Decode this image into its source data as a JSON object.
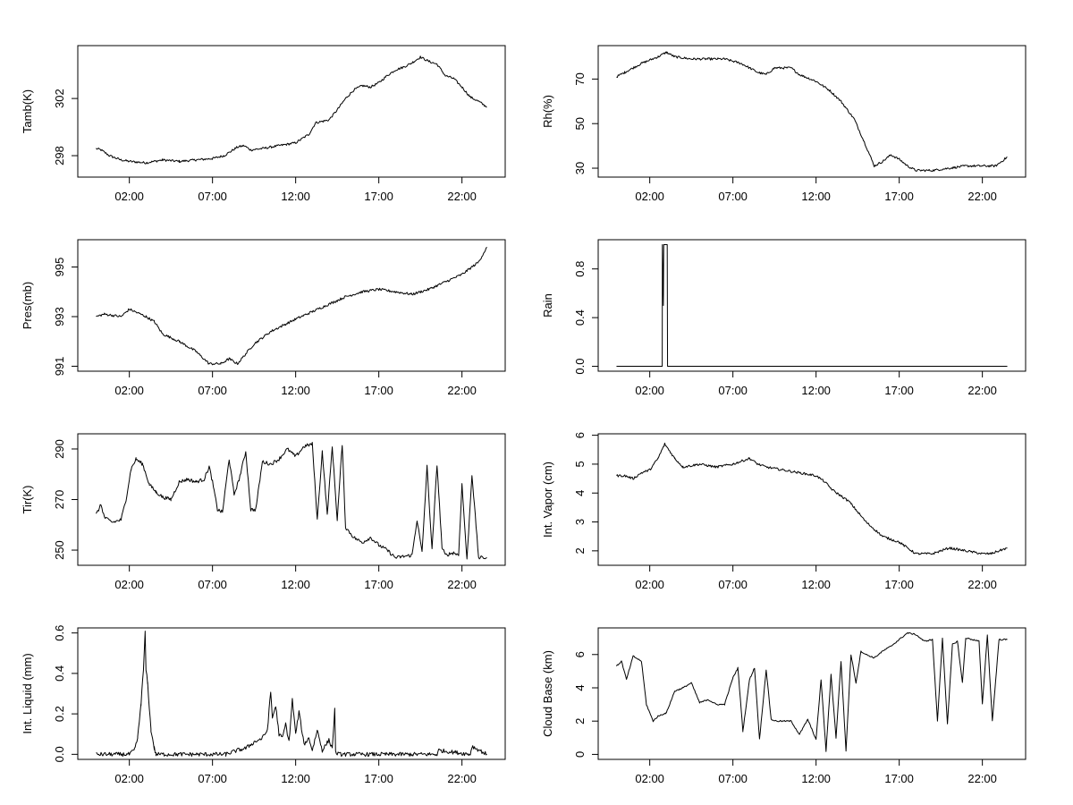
{
  "chart_data": [
    {
      "id": "tamb",
      "type": "line",
      "ylabel": "Tamb(K)",
      "xlabel": "",
      "x_unit": "hour",
      "xlim": [
        -1.1,
        24.6
      ],
      "xticks": [
        2,
        7,
        12,
        17,
        22
      ],
      "xticklabels": [
        "02:00",
        "07:00",
        "12:00",
        "17:00",
        "22:00"
      ],
      "ylim": [
        296.5,
        305.7
      ],
      "yticks": [
        298,
        302
      ],
      "yticklabels": [
        "298",
        "302"
      ],
      "series": [
        {
          "name": "Tamb",
          "x": [
            0,
            0.3,
            0.8,
            1.5,
            2.0,
            3.0,
            4.0,
            5.0,
            6.0,
            7.0,
            7.7,
            8.5,
            8.9,
            9.3,
            10.0,
            11.0,
            12.0,
            12.8,
            13.2,
            14.0,
            14.5,
            15.0,
            15.5,
            16.0,
            16.5,
            17.0,
            17.5,
            18.0,
            18.5,
            19.0,
            19.5,
            20.0,
            20.5,
            21.0,
            21.5,
            22.0,
            22.5,
            23.0,
            23.5
          ],
          "y": [
            298.5,
            298.4,
            298.0,
            297.7,
            297.6,
            297.5,
            297.7,
            297.6,
            297.7,
            297.8,
            298.0,
            298.6,
            298.7,
            298.4,
            298.5,
            298.7,
            298.9,
            299.5,
            300.3,
            300.5,
            301.2,
            302.0,
            302.6,
            302.9,
            302.8,
            303.1,
            303.6,
            304.0,
            304.2,
            304.5,
            304.9,
            304.6,
            304.4,
            303.6,
            303.4,
            302.8,
            302.1,
            301.8,
            301.4
          ],
          "noise": 0.08
        }
      ]
    },
    {
      "id": "rh",
      "type": "line",
      "ylabel": "Rh(%)",
      "xlabel": "",
      "x_unit": "hour",
      "xlim": [
        -1.1,
        24.6
      ],
      "xticks": [
        2,
        7,
        12,
        17,
        22
      ],
      "xticklabels": [
        "02:00",
        "07:00",
        "12:00",
        "17:00",
        "22:00"
      ],
      "ylim": [
        26,
        85
      ],
      "yticks": [
        30,
        50,
        70
      ],
      "yticklabels": [
        "30",
        "50",
        "70"
      ],
      "series": [
        {
          "name": "Rh",
          "x": [
            0,
            0.5,
            1.5,
            2.5,
            3.0,
            3.5,
            4.5,
            5.5,
            6.5,
            7.5,
            8.5,
            9.0,
            9.5,
            10.5,
            11.0,
            12.0,
            12.8,
            13.5,
            14.3,
            15.0,
            15.5,
            16.0,
            16.5,
            17.0,
            17.5,
            18.0,
            19.0,
            20.0,
            21.0,
            22.0,
            22.8,
            23.5
          ],
          "y": [
            71,
            73,
            77,
            80,
            82,
            80,
            79,
            79,
            79,
            77,
            73,
            72,
            75,
            75,
            72,
            69,
            65,
            60,
            52,
            40,
            31,
            33,
            36,
            34,
            31,
            29,
            29,
            30,
            31,
            31,
            31,
            35
          ],
          "noise": 0.5
        }
      ]
    },
    {
      "id": "pres",
      "type": "line",
      "ylabel": "Pres(mb)",
      "xlabel": "",
      "x_unit": "hour",
      "xlim": [
        -1.1,
        24.6
      ],
      "xticks": [
        2,
        7,
        12,
        17,
        22
      ],
      "xticklabels": [
        "02:00",
        "07:00",
        "12:00",
        "17:00",
        "22:00"
      ],
      "ylim": [
        990.8,
        996.1
      ],
      "yticks": [
        991,
        993,
        995
      ],
      "yticklabels": [
        "991",
        "993",
        "995"
      ],
      "series": [
        {
          "name": "Pres",
          "x": [
            0,
            0.5,
            1.5,
            2.0,
            3.0,
            3.5,
            4.0,
            5.0,
            6.0,
            6.8,
            7.5,
            8.0,
            8.5,
            9.5,
            10.5,
            12.0,
            13.0,
            14.0,
            15.0,
            16.0,
            17.0,
            18.0,
            19.0,
            20.0,
            21.0,
            22.0,
            23.0,
            23.5
          ],
          "y": [
            993.0,
            993.1,
            993.0,
            993.3,
            993.0,
            992.8,
            992.3,
            992.0,
            991.6,
            991.1,
            991.1,
            991.3,
            991.1,
            991.9,
            992.4,
            992.9,
            993.2,
            993.5,
            993.8,
            994.0,
            994.1,
            994.0,
            993.9,
            994.1,
            994.4,
            994.7,
            995.2,
            995.8
          ],
          "noise": 0.05
        }
      ]
    },
    {
      "id": "rain",
      "type": "line",
      "ylabel": "Rain",
      "xlabel": "",
      "x_unit": "hour",
      "xlim": [
        -1.1,
        24.6
      ],
      "xticks": [
        2,
        7,
        12,
        17,
        22
      ],
      "xticklabels": [
        "02:00",
        "07:00",
        "12:00",
        "17:00",
        "22:00"
      ],
      "ylim": [
        -0.04,
        1.04
      ],
      "yticks": [
        0.0,
        0.4,
        0.8
      ],
      "yticklabels": [
        "0.0",
        "0.4",
        "0.8"
      ],
      "series": [
        {
          "name": "Rain",
          "x": [
            0,
            2.75,
            2.76,
            2.82,
            2.84,
            3.05,
            3.07,
            23.5
          ],
          "y": [
            0,
            0,
            1,
            0.5,
            1,
            1,
            0,
            0
          ],
          "noise": 0
        }
      ]
    },
    {
      "id": "tir",
      "type": "line",
      "ylabel": "Tir(K)",
      "xlabel": "",
      "x_unit": "hour",
      "xlim": [
        -1.1,
        24.6
      ],
      "xticks": [
        2,
        7,
        12,
        17,
        22
      ],
      "xticklabels": [
        "02:00",
        "07:00",
        "12:00",
        "17:00",
        "22:00"
      ],
      "ylim": [
        244,
        296
      ],
      "yticks": [
        250,
        270,
        290
      ],
      "yticklabels": [
        "250",
        "270",
        "290"
      ],
      "series": [
        {
          "name": "Tir",
          "x": [
            0,
            0.3,
            0.5,
            0.7,
            1.0,
            1.5,
            1.8,
            2.1,
            2.4,
            2.8,
            3.2,
            3.6,
            4.0,
            4.5,
            5.0,
            5.5,
            6.0,
            6.5,
            6.8,
            7.0,
            7.3,
            7.6,
            8.0,
            8.3,
            8.6,
            9.0,
            9.3,
            9.6,
            10.0,
            10.5,
            11.0,
            11.5,
            12.0,
            12.5,
            13.0,
            13.3,
            13.6,
            13.9,
            14.2,
            14.5,
            14.8,
            15.0,
            15.5,
            16.0,
            16.5,
            17.0,
            17.5,
            18.0,
            19.0,
            19.3,
            19.6,
            19.9,
            20.2,
            20.5,
            20.8,
            21.0,
            21.5,
            21.8,
            22.0,
            22.3,
            22.6,
            23.0,
            23.5
          ],
          "y": [
            264,
            268,
            263,
            262,
            261,
            262,
            270,
            282,
            286,
            284,
            276,
            273,
            271,
            270,
            277,
            278,
            277,
            278,
            283,
            277,
            266,
            265,
            286,
            272,
            278,
            289,
            266,
            266,
            285,
            284,
            286,
            290,
            287,
            291,
            292,
            262,
            289,
            264,
            291,
            262,
            292,
            259,
            255,
            253,
            255,
            252,
            250,
            247,
            248,
            262,
            249,
            283,
            250,
            284,
            251,
            248,
            249,
            248,
            276,
            246,
            280,
            247,
            247
          ],
          "noise": 0.7
        }
      ]
    },
    {
      "id": "vapor",
      "type": "line",
      "ylabel": "Int. Vapor (cm)",
      "xlabel": "",
      "x_unit": "hour",
      "xlim": [
        -1.1,
        24.6
      ],
      "xticks": [
        2,
        7,
        12,
        17,
        22
      ],
      "xticklabels": [
        "02:00",
        "07:00",
        "12:00",
        "17:00",
        "22:00"
      ],
      "ylim": [
        1.5,
        6.05
      ],
      "yticks": [
        2,
        3,
        4,
        5,
        6
      ],
      "yticklabels": [
        "2",
        "3",
        "4",
        "5",
        "6"
      ],
      "series": [
        {
          "name": "Vapor",
          "x": [
            0,
            0.5,
            1.0,
            1.5,
            2.0,
            2.5,
            2.9,
            3.5,
            4.0,
            5.0,
            6.0,
            7.0,
            8.0,
            8.5,
            9.0,
            10.0,
            11.0,
            12.0,
            12.5,
            13.0,
            14.0,
            15.0,
            16.0,
            17.0,
            18.0,
            19.0,
            20.0,
            21.0,
            22.0,
            22.5,
            23.0,
            23.5
          ],
          "y": [
            4.6,
            4.6,
            4.5,
            4.7,
            4.8,
            5.2,
            5.7,
            5.2,
            4.9,
            5.0,
            4.9,
            5.0,
            5.2,
            5.0,
            4.9,
            4.8,
            4.7,
            4.6,
            4.4,
            4.1,
            3.7,
            3.0,
            2.5,
            2.3,
            1.9,
            1.9,
            2.1,
            2.0,
            1.9,
            1.9,
            2.0,
            2.1
          ],
          "noise": 0.04
        }
      ]
    },
    {
      "id": "liquid",
      "type": "line",
      "ylabel": "Int. Liquid (mm)",
      "xlabel": "",
      "x_unit": "hour",
      "xlim": [
        -1.1,
        24.6
      ],
      "xticks": [
        2,
        7,
        12,
        17,
        22
      ],
      "xticklabels": [
        "02:00",
        "07:00",
        "12:00",
        "17:00",
        "22:00"
      ],
      "ylim": [
        -0.025,
        0.625
      ],
      "yticks": [
        0.0,
        0.2,
        0.4,
        0.6
      ],
      "yticklabels": [
        "0.0",
        "0.2",
        "0.4",
        "0.6"
      ],
      "series": [
        {
          "name": "Liquid",
          "x": [
            0,
            2.0,
            2.3,
            2.5,
            2.7,
            2.85,
            2.95,
            3.0,
            3.1,
            3.3,
            3.5,
            3.6,
            7.8,
            8.5,
            9.0,
            9.5,
            10.0,
            10.3,
            10.5,
            10.6,
            10.8,
            11.0,
            11.2,
            11.4,
            11.6,
            11.8,
            12.0,
            12.2,
            12.5,
            12.8,
            13.0,
            13.3,
            13.6,
            14.0,
            14.2,
            14.35,
            14.4,
            14.6,
            17.0,
            20.5,
            20.6,
            22.5,
            22.6,
            23.5
          ],
          "y": [
            0,
            0,
            0.02,
            0.08,
            0.25,
            0.42,
            0.6,
            0.42,
            0.35,
            0.12,
            0.03,
            0,
            0,
            0.02,
            0.03,
            0.06,
            0.08,
            0.12,
            0.31,
            0.18,
            0.24,
            0.1,
            0.08,
            0.15,
            0.06,
            0.27,
            0.1,
            0.21,
            0.05,
            0.08,
            0.02,
            0.12,
            0.02,
            0.07,
            0.03,
            0.22,
            0.01,
            0,
            0,
            0,
            0.02,
            0,
            0.04,
            0
          ],
          "noise": 0.01
        }
      ]
    },
    {
      "id": "cloudbase",
      "type": "line",
      "ylabel": "Cloud Base (km)",
      "xlabel": "",
      "x_unit": "hour",
      "xlim": [
        -1.1,
        24.6
      ],
      "xticks": [
        2,
        7,
        12,
        17,
        22
      ],
      "xticklabels": [
        "02:00",
        "07:00",
        "12:00",
        "17:00",
        "22:00"
      ],
      "ylim": [
        -0.3,
        7.6
      ],
      "yticks": [
        0,
        2,
        4,
        6
      ],
      "yticklabels": [
        "0",
        "2",
        "4",
        "6"
      ],
      "series": [
        {
          "name": "CloudBase",
          "x": [
            0,
            0.3,
            0.6,
            1.0,
            1.5,
            1.8,
            2.2,
            2.5,
            3.0,
            3.5,
            4.0,
            4.5,
            5.0,
            5.5,
            6.0,
            6.5,
            7.0,
            7.3,
            7.6,
            8.0,
            8.3,
            8.6,
            9.0,
            9.3,
            9.6,
            10.0,
            10.5,
            11.0,
            11.5,
            12.0,
            12.3,
            12.6,
            12.9,
            13.2,
            13.5,
            13.8,
            14.1,
            14.4,
            14.7,
            15.0,
            15.5,
            16.0,
            16.5,
            17.0,
            17.5,
            18.0,
            18.5,
            19.0,
            19.3,
            19.6,
            19.9,
            20.2,
            20.5,
            20.8,
            21.0,
            21.4,
            21.8,
            22.0,
            22.3,
            22.6,
            23.0,
            23.5
          ],
          "y": [
            5.3,
            5.6,
            4.5,
            5.9,
            5.6,
            3.0,
            2.0,
            2.3,
            2.5,
            3.8,
            4.0,
            4.3,
            3.1,
            3.3,
            3.0,
            3.0,
            4.6,
            5.2,
            1.4,
            4.5,
            5.2,
            0.9,
            5.1,
            2.1,
            2.0,
            2.0,
            2.0,
            1.2,
            2.1,
            0.9,
            4.5,
            0.2,
            4.8,
            1.0,
            5.6,
            0.2,
            6.0,
            4.3,
            6.2,
            6.0,
            5.8,
            6.2,
            6.5,
            6.9,
            7.3,
            7.2,
            6.8,
            6.9,
            2.0,
            7.0,
            1.8,
            6.6,
            6.8,
            4.3,
            7.0,
            6.9,
            6.8,
            3.0,
            7.2,
            2.0,
            6.9,
            6.9
          ],
          "noise": 0.04
        }
      ]
    }
  ]
}
